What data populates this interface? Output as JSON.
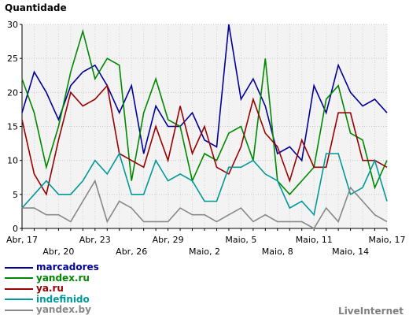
{
  "chart_data": {
    "type": "line",
    "ylabel": "Quantidade",
    "ylim": [
      0,
      30
    ],
    "yticks": [
      0,
      5,
      10,
      15,
      20,
      25,
      30
    ],
    "grid": true,
    "legend_position": "bottom-left",
    "x_count": 31,
    "x_tick_labels": [
      {
        "index": 0,
        "label": "Abr, 17",
        "row": 1
      },
      {
        "index": 3,
        "label": "Abr, 20",
        "row": 2
      },
      {
        "index": 6,
        "label": "Abr, 23",
        "row": 1
      },
      {
        "index": 9,
        "label": "Abr, 26",
        "row": 2
      },
      {
        "index": 12,
        "label": "Abr, 29",
        "row": 1
      },
      {
        "index": 15,
        "label": "Maio, 2",
        "row": 2
      },
      {
        "index": 18,
        "label": "Maio, 5",
        "row": 1
      },
      {
        "index": 21,
        "label": "Maio, 8",
        "row": 2
      },
      {
        "index": 24,
        "label": "Maio, 11",
        "row": 1
      },
      {
        "index": 27,
        "label": "Maio, 14",
        "row": 2
      },
      {
        "index": 30,
        "label": "Maio, 17",
        "row": 1
      }
    ],
    "series": [
      {
        "name": "marcadores",
        "color": "#000099",
        "values": [
          17,
          23,
          20,
          16,
          21,
          23,
          24,
          21,
          17,
          21,
          11,
          18,
          15,
          15,
          17,
          13,
          12,
          30,
          19,
          22,
          18,
          11,
          12,
          10,
          21,
          17,
          24,
          20,
          18,
          19,
          17
        ]
      },
      {
        "name": "yandex.ru",
        "color": "#008800",
        "values": [
          22,
          17,
          9,
          15,
          23,
          29,
          22,
          25,
          24,
          7,
          17,
          22,
          16,
          15,
          7,
          11,
          10,
          14,
          15,
          10,
          25,
          7,
          5,
          7,
          9,
          19,
          21,
          14,
          13,
          6,
          10
        ]
      },
      {
        "name": "ya.ru",
        "color": "#990000",
        "values": [
          16,
          8,
          5,
          13,
          20,
          18,
          19,
          21,
          11,
          10,
          9,
          15,
          10,
          18,
          11,
          15,
          9,
          8,
          12,
          19,
          14,
          12,
          7,
          13,
          9,
          9,
          17,
          17,
          10,
          10,
          9
        ]
      },
      {
        "name": "indefinido",
        "color": "#009999",
        "values": [
          3,
          5,
          7,
          5,
          5,
          7,
          10,
          8,
          11,
          5,
          5,
          10,
          7,
          8,
          7,
          4,
          4,
          9,
          9,
          10,
          8,
          7,
          3,
          4,
          2,
          11,
          11,
          5,
          6,
          10,
          4
        ]
      },
      {
        "name": "yandex.by",
        "color": "#888888",
        "values": [
          3,
          3,
          2,
          2,
          1,
          4,
          7,
          1,
          4,
          3,
          1,
          1,
          1,
          3,
          2,
          2,
          1,
          2,
          3,
          1,
          2,
          1,
          1,
          1,
          0,
          3,
          1,
          6,
          4,
          2,
          1
        ]
      }
    ]
  },
  "footer": "LiveInternet"
}
